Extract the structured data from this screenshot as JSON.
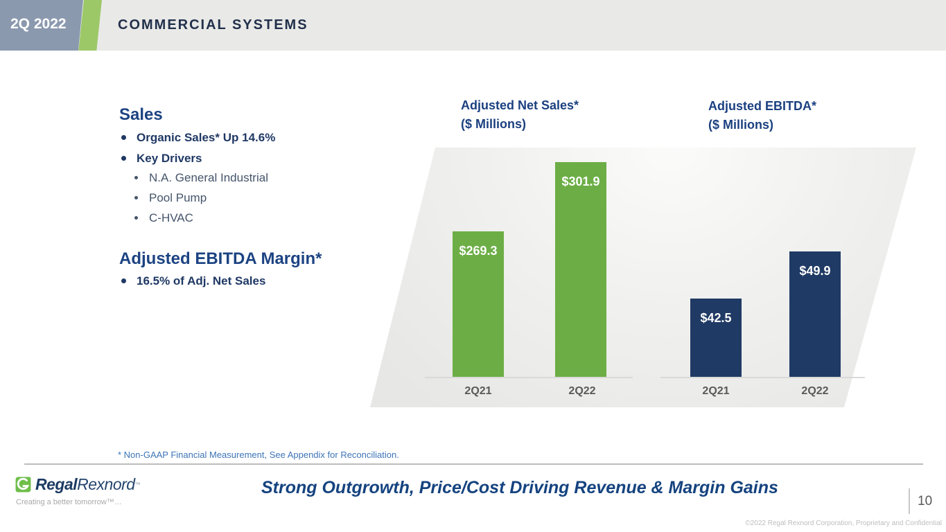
{
  "header": {
    "badge": "2Q 2022",
    "title": "COMMERCIAL SYSTEMS"
  },
  "left_panel": {
    "sales": {
      "heading": "Sales",
      "bullets": [
        "Organic Sales* Up 14.6%",
        "Key Drivers"
      ],
      "sub_bullets": [
        "N.A. General Industrial",
        "Pool Pump",
        "C-HVAC"
      ]
    },
    "ebitda": {
      "heading": "Adjusted EBITDA Margin*",
      "bullets": [
        "16.5% of Adj. Net Sales"
      ]
    }
  },
  "chart_data": [
    {
      "type": "bar",
      "title": "Adjusted Net Sales*",
      "subtitle": "($ Millions)",
      "categories": [
        "2Q21",
        "2Q22"
      ],
      "values": [
        269.3,
        301.9
      ],
      "labels": [
        "$269.3",
        "$301.9"
      ],
      "bar_color": "#6cae45",
      "ylim": [
        200,
        302
      ],
      "grid": false,
      "legend": "none"
    },
    {
      "type": "bar",
      "title": "Adjusted EBITDA*",
      "subtitle": "($ Millions)",
      "categories": [
        "2Q21",
        "2Q22"
      ],
      "values": [
        42.5,
        49.9
      ],
      "labels": [
        "$42.5",
        "$49.9"
      ],
      "bar_color": "#1f3a64",
      "ylim": [
        30,
        64
      ],
      "grid": false,
      "legend": "none"
    }
  ],
  "footnote": "* Non-GAAP Financial Measurement, See Appendix for Reconciliation.",
  "footer": {
    "logo_bold": "Regal",
    "logo_light": "Rexnord",
    "logo_trademark": "™",
    "tagline": "Creating a better tomorrow™…",
    "slogan": "Strong Outgrowth, Price/Cost Driving Revenue & Margin Gains",
    "page_number": "10",
    "copyright": "©2022 Regal Rexnord Corporation, Proprietary and Confidential"
  },
  "colors": {
    "badge_bg": "#8b99af",
    "accent_green_stripe": "#9cc868",
    "header_band": "#e9e9e7",
    "heading_blue": "#1c4382",
    "bullet_navy": "#1f3864",
    "sub_bullet_gray_blue": "#44546a",
    "bar_green": "#6cae45",
    "bar_navy": "#1f3a64",
    "tick_gray": "#595959",
    "footnote_blue": "#3d74b8",
    "slogan_blue": "#15437f"
  }
}
